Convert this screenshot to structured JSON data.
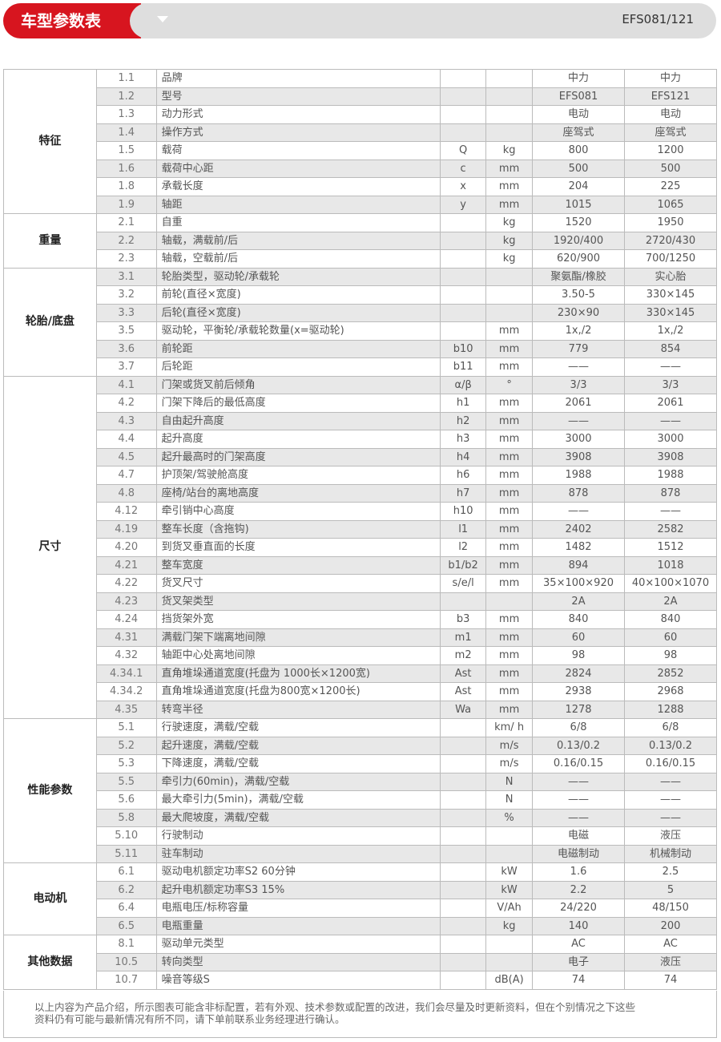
{
  "header": {
    "title": "车型参数表",
    "model": "EFS081/121",
    "accent": "#d7151f",
    "dropdown_icon": "triangle-down-icon"
  },
  "groups": [
    {
      "name": "特征",
      "rows": [
        [
          "1.1",
          "品牌",
          "",
          "",
          "中力",
          "中力"
        ],
        [
          "1.2",
          "型号",
          "",
          "",
          "EFS081",
          "EFS121"
        ],
        [
          "1.3",
          "动力形式",
          "",
          "",
          "电动",
          "电动"
        ],
        [
          "1.4",
          "操作方式",
          "",
          "",
          "座驾式",
          "座驾式"
        ],
        [
          "1.5",
          "载荷",
          "Q",
          "kg",
          "800",
          "1200"
        ],
        [
          "1.6",
          "载荷中心距",
          "c",
          "mm",
          "500",
          "500"
        ],
        [
          "1.8",
          "承载长度",
          "x",
          "mm",
          "204",
          "225"
        ],
        [
          "1.9",
          "轴距",
          "y",
          "mm",
          "1015",
          "1065"
        ]
      ]
    },
    {
      "name": "重量",
      "rows": [
        [
          "2.1",
          "自重",
          "",
          "kg",
          "1520",
          "1950"
        ],
        [
          "2.2",
          "轴载，满载前/后",
          "",
          "kg",
          "1920/400",
          "2720/430"
        ],
        [
          "2.3",
          "轴载，空载前/后",
          "",
          "kg",
          "620/900",
          "700/1250"
        ]
      ]
    },
    {
      "name": "轮胎/底盘",
      "rows": [
        [
          "3.1",
          "轮胎类型，驱动轮/承载轮",
          "",
          "",
          "聚氨酯/橡胶",
          "实心胎"
        ],
        [
          "3.2",
          "前轮(直径×宽度)",
          "",
          "",
          "3.50-5",
          "330×145"
        ],
        [
          "3.3",
          "后轮(直径×宽度)",
          "",
          "",
          "230×90",
          "330×145"
        ],
        [
          "3.5",
          "驱动轮，平衡轮/承载轮数量(x=驱动轮)",
          "",
          "mm",
          "1x,/2",
          "1x,/2"
        ],
        [
          "3.6",
          "前轮距",
          "b10",
          "mm",
          "779",
          "854"
        ],
        [
          "3.7",
          "后轮距",
          "b11",
          "mm",
          "——",
          "——"
        ]
      ]
    },
    {
      "name": "尺寸",
      "rows": [
        [
          "4.1",
          "门架或货叉前后倾角",
          "α/β",
          "°",
          "3/3",
          "3/3"
        ],
        [
          "4.2",
          "门架下降后的最低高度",
          "h1",
          "mm",
          "2061",
          "2061"
        ],
        [
          "4.3",
          "自由起升高度",
          "h2",
          "mm",
          "——",
          "——"
        ],
        [
          "4.4",
          "起升高度",
          "h3",
          "mm",
          "3000",
          "3000"
        ],
        [
          "4.5",
          "起升最高时的门架高度",
          "h4",
          "mm",
          "3908",
          "3908"
        ],
        [
          "4.7",
          "护顶架/驾驶舱高度",
          "h6",
          "mm",
          "1988",
          "1988"
        ],
        [
          "4.8",
          "座椅/站台的离地高度",
          "h7",
          "mm",
          "878",
          "878"
        ],
        [
          "4.12",
          "牵引销中心高度",
          "h10",
          "mm",
          "——",
          "——"
        ],
        [
          "4.19",
          "整车长度（含拖钩)",
          "l1",
          "mm",
          "2402",
          "2582"
        ],
        [
          "4.20",
          "到货叉垂直面的长度",
          "l2",
          "mm",
          "1482",
          "1512"
        ],
        [
          "4.21",
          "整车宽度",
          "b1/b2",
          "mm",
          "894",
          "1018"
        ],
        [
          "4.22",
          "货叉尺寸",
          "s/e/l",
          "mm",
          "35×100×920",
          "40×100×1070"
        ],
        [
          "4.23",
          "货叉架类型",
          "",
          "",
          "2A",
          "2A"
        ],
        [
          "4.24",
          "挡货架外宽",
          "b3",
          "mm",
          "840",
          "840"
        ],
        [
          "4.31",
          "满载门架下端离地间隙",
          "m1",
          "mm",
          "60",
          "60"
        ],
        [
          "4.32",
          "轴距中心处离地间隙",
          "m2",
          "mm",
          "98",
          "98"
        ],
        [
          "4.34.1",
          "直角堆垛通道宽度(托盘为 1000长×1200宽)",
          "Ast",
          "mm",
          "2824",
          "2852"
        ],
        [
          "4.34.2",
          "直角堆垛通道宽度(托盘为800宽×1200长)",
          "Ast",
          "mm",
          "2938",
          "2968"
        ],
        [
          "4.35",
          "转弯半径",
          "Wa",
          "mm",
          "1278",
          "1288"
        ]
      ]
    },
    {
      "name": "性能参数",
      "rows": [
        [
          "5.1",
          "行驶速度，满载/空载",
          "",
          "km/ h",
          "6/8",
          "6/8"
        ],
        [
          "5.2",
          "起升速度，满载/空载",
          "",
          "m/s",
          "0.13/0.2",
          "0.13/0.2"
        ],
        [
          "5.3",
          "下降速度，满载/空载",
          "",
          "m/s",
          "0.16/0.15",
          "0.16/0.15"
        ],
        [
          "5.5",
          "牵引力(60min)，满载/空载",
          "",
          "N",
          "——",
          "——"
        ],
        [
          "5.6",
          "最大牵引力(5min)，满载/空载",
          "",
          "N",
          "——",
          "——"
        ],
        [
          "5.8",
          "最大爬坡度，满载/空载",
          "",
          "%",
          "——",
          "——"
        ],
        [
          "5.10",
          "行驶制动",
          "",
          "",
          "电磁",
          "液压"
        ],
        [
          "5.11",
          "驻车制动",
          "",
          "",
          "电磁制动",
          "机械制动"
        ]
      ]
    },
    {
      "name": "电动机",
      "rows": [
        [
          "6.1",
          "驱动电机额定功率S2 60分钟",
          "",
          "kW",
          "1.6",
          "2.5"
        ],
        [
          "6.2",
          "起升电机额定功率S3 15%",
          "",
          "kW",
          "2.2",
          "5"
        ],
        [
          "6.4",
          "电瓶电压/标称容量",
          "",
          "V/Ah",
          "24/220",
          "48/150"
        ],
        [
          "6.5",
          "电瓶重量",
          "",
          "kg",
          "140",
          "200"
        ]
      ]
    },
    {
      "name": "其他数据",
      "rows": [
        [
          "8.1",
          "驱动单元类型",
          "",
          "",
          "AC",
          "AC"
        ],
        [
          "10.5",
          "转向类型",
          "",
          "",
          "电子",
          "液压"
        ],
        [
          "10.7",
          "噪音等级S",
          "",
          "dB(A)",
          "74",
          "74"
        ]
      ]
    }
  ],
  "note": "以上内容为产品介绍，所示图表可能含非标配置，若有外观、技术参数或配置的改进，我们会尽量及时更新资料，但在个别情况之下这些\n资料仍有可能与最新情况有所不同，请下单前联系业务经理进行确认。"
}
